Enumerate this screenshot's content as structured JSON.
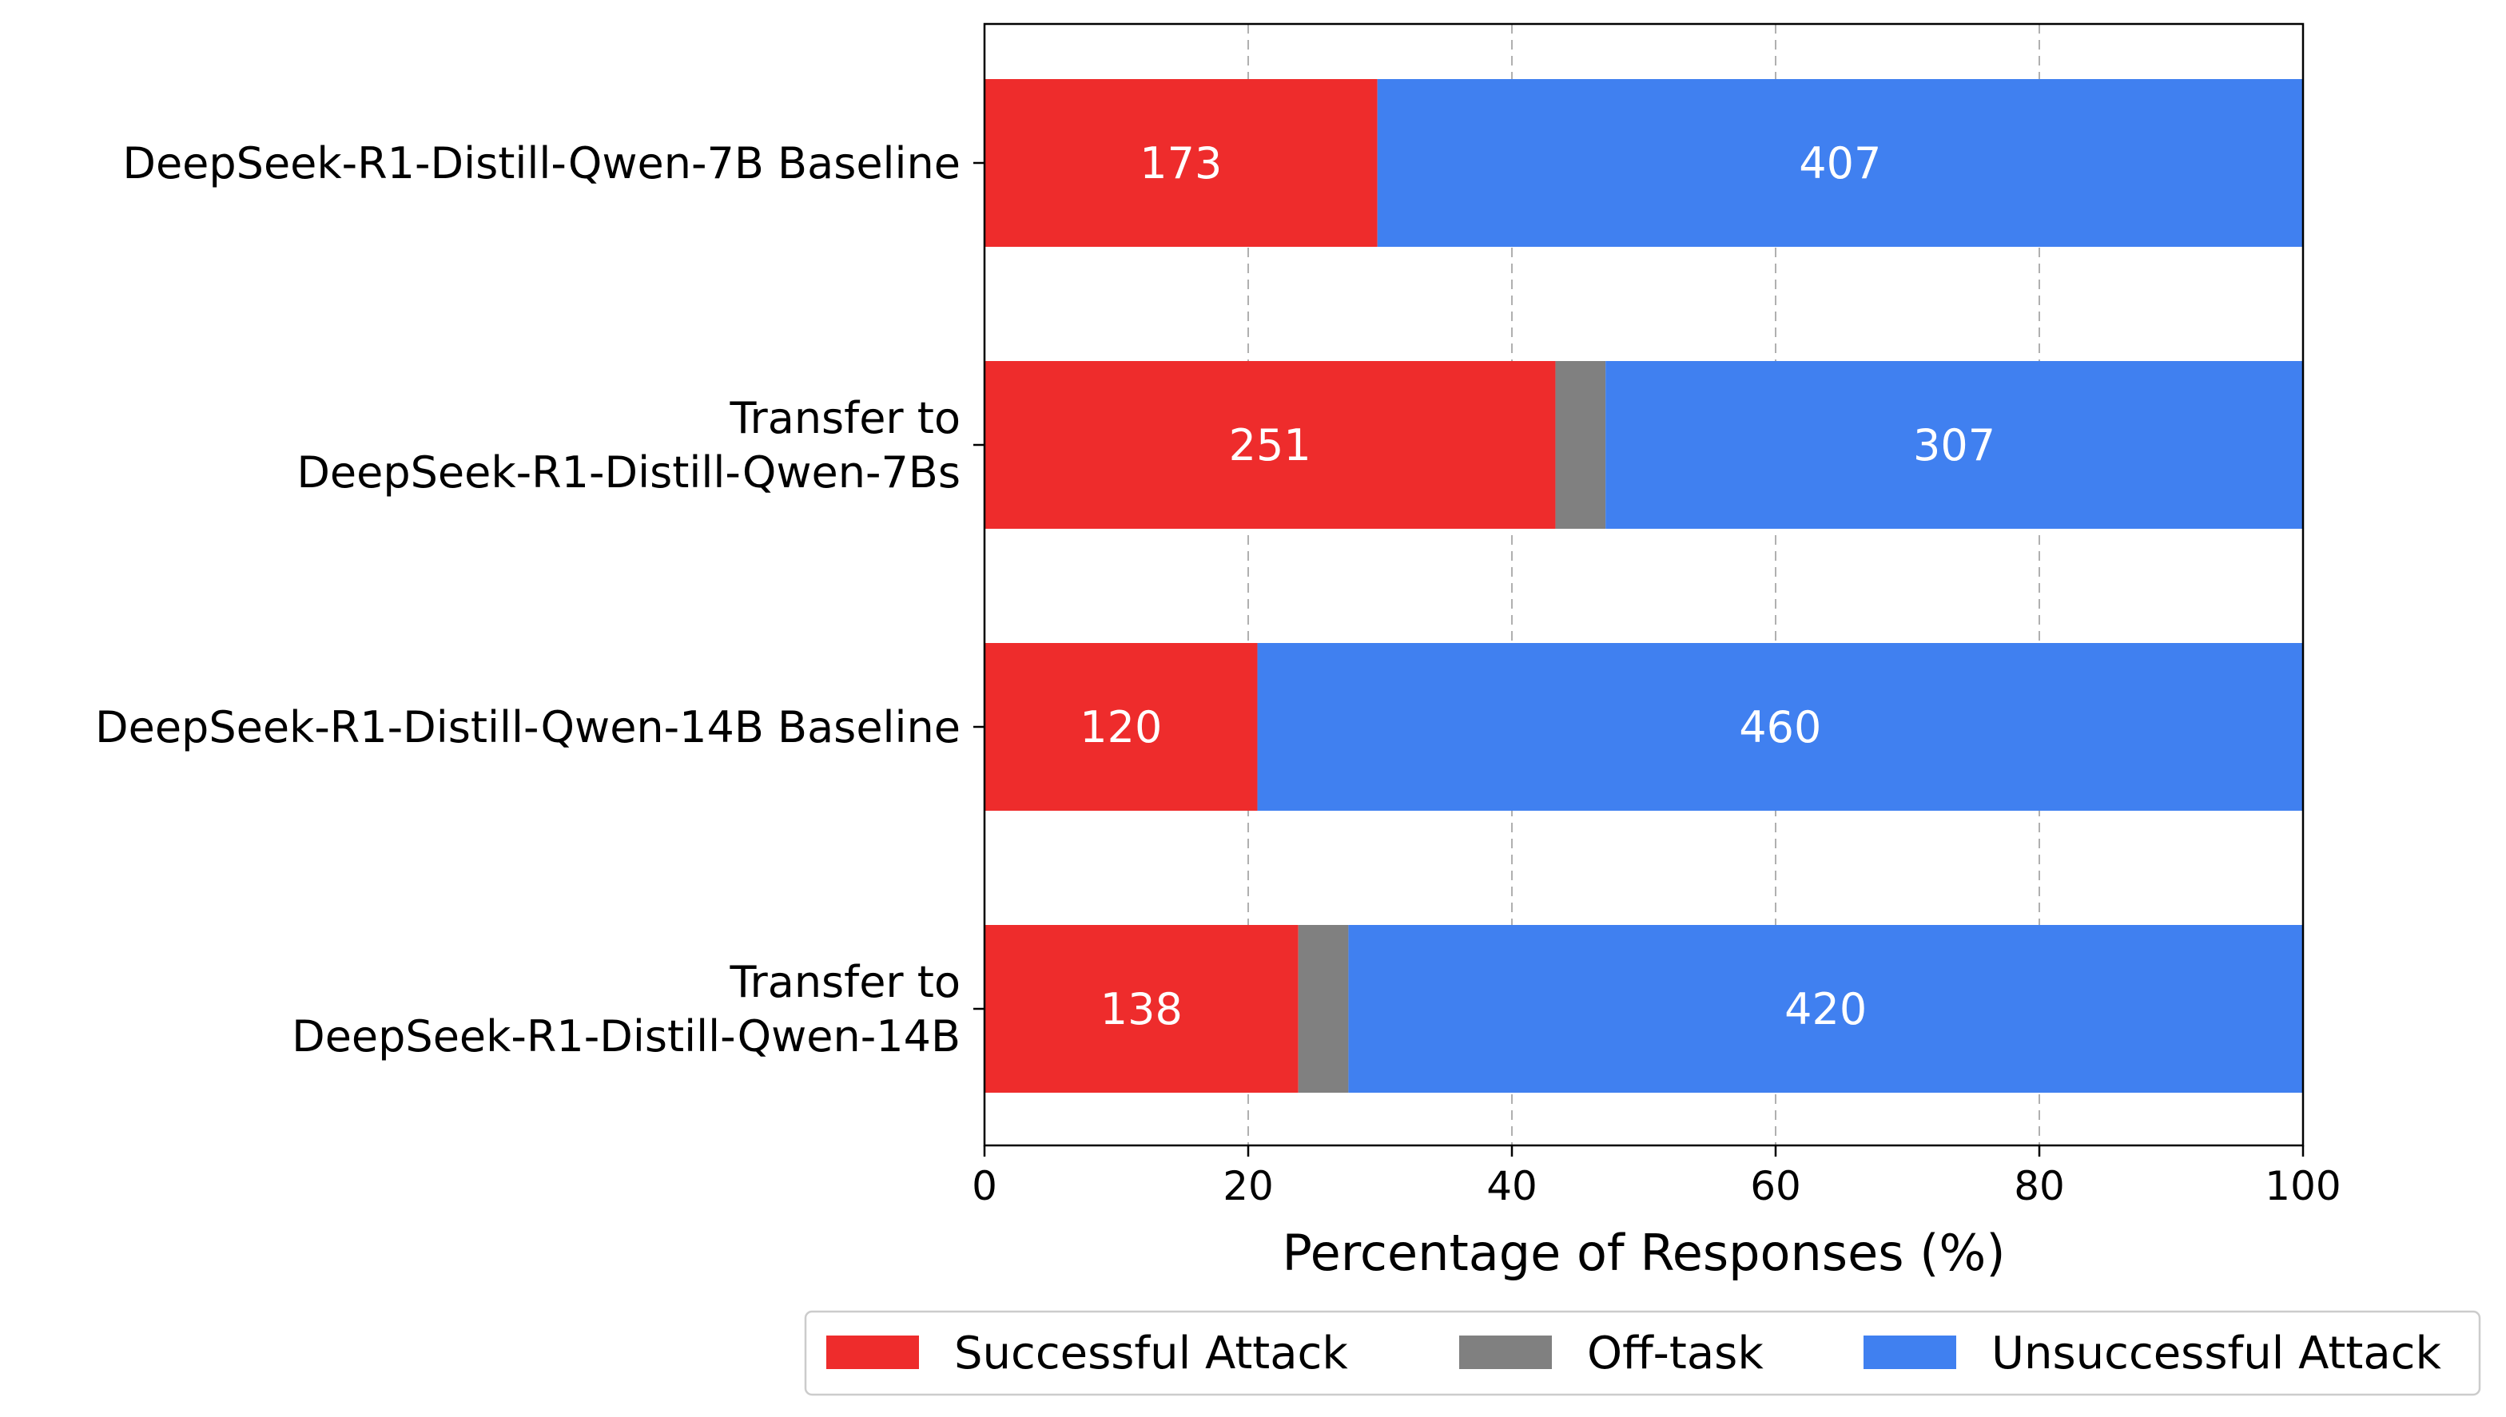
{
  "chart_data": {
    "type": "bar",
    "orientation": "horizontal",
    "stacked": true,
    "categories": [
      [
        "DeepSeek-R1-Distill-Qwen-7B Baseline"
      ],
      [
        "Transfer to",
        "DeepSeek-R1-Distill-Qwen-7Bs"
      ],
      [
        "DeepSeek-R1-Distill-Qwen-14B Baseline"
      ],
      [
        "Transfer to",
        "DeepSeek-R1-Distill-Qwen-14B"
      ]
    ],
    "series": [
      {
        "name": "Successful Attack",
        "color": "#ee2c2c",
        "values": [
          29.8,
          43.3,
          20.7,
          23.8
        ],
        "labels": [
          "173",
          "251",
          "120",
          "138"
        ]
      },
      {
        "name": "Off-task",
        "color": "#808080",
        "values": [
          0.0,
          3.8,
          0.0,
          3.8
        ],
        "labels": [
          "",
          "",
          "",
          ""
        ]
      },
      {
        "name": "Unsuccessful Attack",
        "color": "#4080f0",
        "values": [
          70.2,
          52.9,
          79.3,
          72.4
        ],
        "labels": [
          "407",
          "307",
          "460",
          "420"
        ]
      }
    ],
    "xlabel": "Percentage of Responses (%)",
    "xlim": [
      0,
      100
    ],
    "xticks": [
      0,
      20,
      40,
      60,
      80,
      100
    ],
    "grid": "x-dashed",
    "legend": "bottom, outside, 3 columns"
  }
}
